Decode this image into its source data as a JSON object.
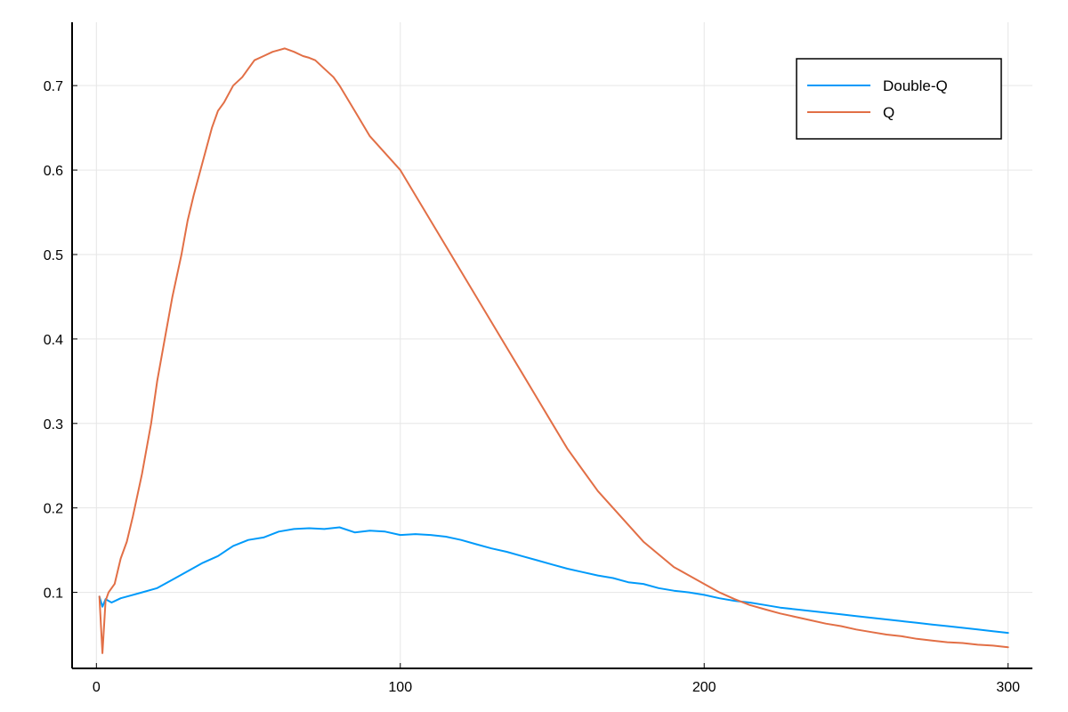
{
  "chart_data": {
    "type": "line",
    "title": "",
    "xlabel": "",
    "ylabel": "",
    "xlim": [
      -8,
      308
    ],
    "ylim": [
      0.01,
      0.775
    ],
    "x_ticks": [
      0,
      100,
      200,
      300
    ],
    "x_tick_labels": [
      "0",
      "100",
      "200",
      "300"
    ],
    "y_ticks": [
      0.1,
      0.2,
      0.3,
      0.4,
      0.5,
      0.6,
      0.7
    ],
    "y_tick_labels": [
      "0.1",
      "0.2",
      "0.3",
      "0.4",
      "0.5",
      "0.6",
      "0.7"
    ],
    "grid": true,
    "legend_position": "top-right",
    "series": [
      {
        "name": "Double-Q",
        "color": "#009AFA",
        "x": [
          1,
          2,
          3,
          5,
          8,
          10,
          15,
          20,
          25,
          30,
          35,
          40,
          45,
          50,
          55,
          60,
          65,
          70,
          75,
          80,
          85,
          90,
          95,
          100,
          105,
          110,
          115,
          120,
          125,
          130,
          135,
          140,
          145,
          150,
          155,
          160,
          165,
          170,
          175,
          180,
          185,
          190,
          195,
          200,
          205,
          210,
          215,
          220,
          225,
          230,
          235,
          240,
          245,
          250,
          255,
          260,
          265,
          270,
          275,
          280,
          285,
          290,
          295,
          300
        ],
        "y": [
          0.095,
          0.083,
          0.092,
          0.088,
          0.093,
          0.095,
          0.1,
          0.105,
          0.115,
          0.125,
          0.135,
          0.143,
          0.155,
          0.162,
          0.165,
          0.172,
          0.175,
          0.176,
          0.175,
          0.177,
          0.171,
          0.173,
          0.172,
          0.168,
          0.169,
          0.168,
          0.166,
          0.162,
          0.157,
          0.152,
          0.148,
          0.143,
          0.138,
          0.133,
          0.128,
          0.124,
          0.12,
          0.117,
          0.112,
          0.11,
          0.105,
          0.102,
          0.1,
          0.097,
          0.093,
          0.09,
          0.088,
          0.085,
          0.082,
          0.08,
          0.078,
          0.076,
          0.074,
          0.072,
          0.07,
          0.068,
          0.066,
          0.064,
          0.062,
          0.06,
          0.058,
          0.056,
          0.054,
          0.052
        ]
      },
      {
        "name": "Q",
        "color": "#E26F46",
        "x": [
          1,
          2,
          3,
          4,
          5,
          6,
          8,
          10,
          12,
          15,
          18,
          20,
          22,
          25,
          28,
          30,
          32,
          35,
          38,
          40,
          42,
          45,
          48,
          50,
          52,
          55,
          58,
          60,
          62,
          65,
          68,
          70,
          72,
          75,
          78,
          80,
          85,
          90,
          95,
          100,
          105,
          110,
          115,
          120,
          125,
          130,
          135,
          140,
          145,
          150,
          155,
          160,
          165,
          170,
          175,
          180,
          185,
          190,
          195,
          200,
          205,
          210,
          215,
          220,
          225,
          230,
          235,
          240,
          245,
          250,
          255,
          260,
          265,
          270,
          275,
          280,
          285,
          290,
          295,
          300
        ],
        "y": [
          0.095,
          0.028,
          0.09,
          0.1,
          0.105,
          0.11,
          0.14,
          0.16,
          0.19,
          0.24,
          0.3,
          0.35,
          0.39,
          0.45,
          0.5,
          0.54,
          0.57,
          0.61,
          0.65,
          0.67,
          0.68,
          0.7,
          0.71,
          0.72,
          0.73,
          0.735,
          0.74,
          0.742,
          0.744,
          0.74,
          0.735,
          0.733,
          0.73,
          0.72,
          0.71,
          0.7,
          0.67,
          0.64,
          0.62,
          0.6,
          0.57,
          0.54,
          0.51,
          0.48,
          0.45,
          0.42,
          0.39,
          0.36,
          0.33,
          0.3,
          0.27,
          0.245,
          0.22,
          0.2,
          0.18,
          0.16,
          0.145,
          0.13,
          0.12,
          0.11,
          0.1,
          0.092,
          0.085,
          0.08,
          0.075,
          0.071,
          0.067,
          0.063,
          0.06,
          0.056,
          0.053,
          0.05,
          0.048,
          0.045,
          0.043,
          0.041,
          0.04,
          0.038,
          0.037,
          0.035
        ]
      }
    ]
  }
}
